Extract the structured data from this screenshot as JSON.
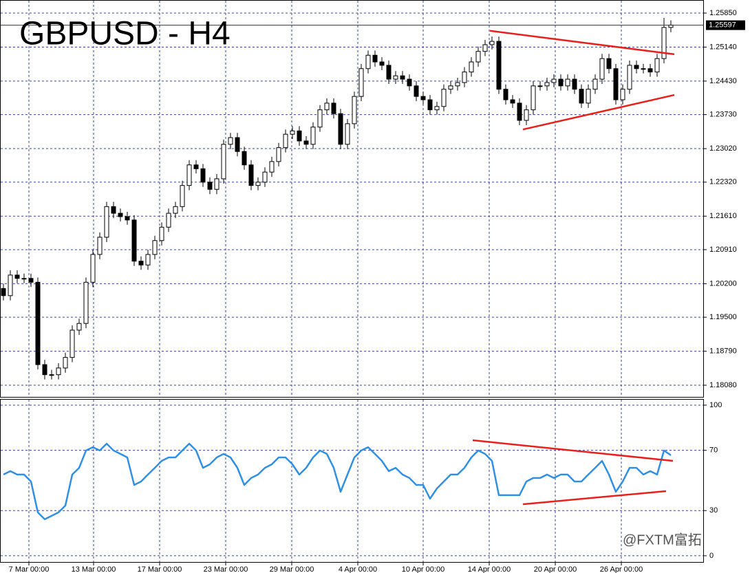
{
  "chart_data": [
    {
      "type": "candlestick",
      "title": "GBPUSD - H4",
      "color": "#000000",
      "up_color": "#ffffff",
      "down_color": "#000000",
      "trendline_color": "#e8201c",
      "grid": true,
      "xlim": [
        -0.5,
        101.8
      ],
      "ylim": [
        1.17836,
        1.26123
      ],
      "yticks": [
        {
          "value": 1.2585,
          "label": "1.25850"
        },
        {
          "value": 1.2514,
          "label": "1.25140"
        },
        {
          "value": 1.2443,
          "label": "1.24430"
        },
        {
          "value": 1.2373,
          "label": "1.23730"
        },
        {
          "value": 1.2302,
          "label": "1.23020"
        },
        {
          "value": 1.2232,
          "label": "1.22320"
        },
        {
          "value": 1.2161,
          "label": "1.21610"
        },
        {
          "value": 1.2091,
          "label": "1.20910"
        },
        {
          "value": 1.202,
          "label": "1.20200"
        },
        {
          "value": 1.195,
          "label": "1.19500"
        },
        {
          "value": 1.1879,
          "label": "1.18790"
        },
        {
          "value": 1.1808,
          "label": "1.18080"
        }
      ],
      "last_price": 1.25597,
      "open": [
        1.201,
        1.1995,
        1.2038,
        1.2031,
        1.2031,
        1.2023,
        1.1851,
        1.183,
        1.183,
        1.1844,
        1.1866,
        1.1923,
        1.1937,
        1.2023,
        1.2081,
        1.2117,
        1.2181,
        1.2167,
        1.216,
        1.2153,
        1.2067,
        1.2059,
        1.2081,
        1.211,
        1.2138,
        1.2167,
        1.2181,
        1.2225,
        1.2268,
        1.226,
        1.2232,
        1.2217,
        1.2239,
        1.2311,
        1.2325,
        1.2296,
        1.2268,
        1.2225,
        1.2232,
        1.2253,
        1.2275,
        1.2304,
        1.2332,
        1.2339,
        1.2318,
        1.2311,
        1.2347,
        1.2383,
        1.2397,
        1.2375,
        1.2311,
        1.2354,
        1.2411,
        1.2469,
        1.2497,
        1.2483,
        1.2476,
        1.2447,
        1.2454,
        1.2447,
        1.2433,
        1.2411,
        1.2404,
        1.2383,
        1.239,
        1.2426,
        1.2433,
        1.244,
        1.2462,
        1.2483,
        1.2505,
        1.2519,
        1.2526,
        1.2426,
        1.2404,
        1.2397,
        1.2361,
        1.2383,
        1.2433,
        1.2433,
        1.244,
        1.2447,
        1.2433,
        1.2447,
        1.2426,
        1.2397,
        1.2426,
        1.2447,
        1.249,
        1.2469,
        1.2404,
        1.2426,
        1.2476,
        1.2469,
        1.2469,
        1.2462,
        1.249,
        1.2555
      ],
      "high": [
        1.202,
        1.2048,
        1.2048,
        1.2041,
        1.2041,
        1.2033,
        1.1861,
        1.184,
        1.1854,
        1.1876,
        1.1933,
        1.1947,
        1.2033,
        1.2091,
        1.2127,
        1.2191,
        1.2191,
        1.2177,
        1.217,
        1.2163,
        1.2077,
        1.2091,
        1.212,
        1.2148,
        1.2177,
        1.2191,
        1.2235,
        1.2278,
        1.2278,
        1.227,
        1.2242,
        1.2249,
        1.2321,
        1.2335,
        1.2335,
        1.2306,
        1.2278,
        1.2242,
        1.2263,
        1.2285,
        1.2314,
        1.2342,
        1.2349,
        1.2349,
        1.2328,
        1.2357,
        1.2393,
        1.2407,
        1.2407,
        1.2385,
        1.2364,
        1.2421,
        1.2479,
        1.2507,
        1.2507,
        1.2493,
        1.2486,
        1.2464,
        1.2464,
        1.2457,
        1.2443,
        1.2421,
        1.2414,
        1.24,
        1.2436,
        1.2443,
        1.245,
        1.2472,
        1.2493,
        1.2515,
        1.2529,
        1.2536,
        1.2536,
        1.2436,
        1.2414,
        1.2407,
        1.2393,
        1.2443,
        1.2443,
        1.245,
        1.2457,
        1.2457,
        1.2457,
        1.2457,
        1.2436,
        1.2436,
        1.2457,
        1.25,
        1.25,
        1.2479,
        1.2436,
        1.2486,
        1.2486,
        1.2479,
        1.2479,
        1.25,
        1.2575,
        1.257
      ],
      "low": [
        1.1985,
        1.1985,
        1.2021,
        1.2021,
        1.2013,
        1.1841,
        1.182,
        1.182,
        1.182,
        1.1834,
        1.1856,
        1.1913,
        1.1927,
        1.2013,
        1.2071,
        1.2107,
        1.2157,
        1.215,
        1.2143,
        1.2057,
        1.2049,
        1.2049,
        1.2071,
        1.21,
        1.2128,
        1.2157,
        1.2171,
        1.2215,
        1.225,
        1.2222,
        1.2207,
        1.2207,
        1.2229,
        1.2301,
        1.2286,
        1.2258,
        1.2215,
        1.2215,
        1.2222,
        1.2243,
        1.2265,
        1.2294,
        1.2322,
        1.2308,
        1.2301,
        1.2301,
        1.2337,
        1.2373,
        1.2365,
        1.2301,
        1.2301,
        1.2344,
        1.2401,
        1.2459,
        1.2473,
        1.2466,
        1.2437,
        1.2437,
        1.2437,
        1.2423,
        1.2401,
        1.2394,
        1.2373,
        1.2373,
        1.238,
        1.2416,
        1.2423,
        1.243,
        1.2452,
        1.2473,
        1.2495,
        1.2509,
        1.2416,
        1.2394,
        1.2387,
        1.2351,
        1.2351,
        1.2373,
        1.2423,
        1.2423,
        1.243,
        1.2423,
        1.2423,
        1.2416,
        1.2387,
        1.2387,
        1.2416,
        1.2437,
        1.2459,
        1.2394,
        1.2394,
        1.2416,
        1.2459,
        1.2459,
        1.2452,
        1.2452,
        1.248,
        1.2545
      ],
      "close": [
        1.1995,
        1.2038,
        1.2031,
        1.2031,
        1.2023,
        1.1851,
        1.183,
        1.183,
        1.1844,
        1.1866,
        1.1923,
        1.1937,
        1.2023,
        1.2081,
        1.2117,
        1.2181,
        1.2167,
        1.216,
        1.2153,
        1.2067,
        1.2059,
        1.2081,
        1.211,
        1.2138,
        1.2167,
        1.2181,
        1.2225,
        1.2268,
        1.226,
        1.2232,
        1.2217,
        1.2239,
        1.2311,
        1.2325,
        1.2296,
        1.2268,
        1.2225,
        1.2232,
        1.2253,
        1.2275,
        1.2304,
        1.2332,
        1.2339,
        1.2318,
        1.2311,
        1.2347,
        1.2383,
        1.2397,
        1.2375,
        1.2311,
        1.2354,
        1.2411,
        1.2469,
        1.2497,
        1.2483,
        1.2476,
        1.2447,
        1.2454,
        1.2447,
        1.2433,
        1.2411,
        1.2404,
        1.2383,
        1.239,
        1.2426,
        1.2433,
        1.244,
        1.2462,
        1.2483,
        1.2505,
        1.2519,
        1.2526,
        1.2426,
        1.2404,
        1.2397,
        1.2361,
        1.2383,
        1.2433,
        1.2433,
        1.244,
        1.2447,
        1.2433,
        1.2447,
        1.2426,
        1.2397,
        1.2426,
        1.2447,
        1.249,
        1.2469,
        1.2404,
        1.2426,
        1.2476,
        1.2469,
        1.2469,
        1.2462,
        1.249,
        1.2555,
        1.256
      ],
      "trendlines": [
        {
          "x": [
            70.7,
            97.5
          ],
          "y": [
            1.2548,
            1.2499
          ]
        },
        {
          "x": [
            75.5,
            97.5
          ],
          "y": [
            1.2342,
            1.2414
          ]
        }
      ]
    },
    {
      "type": "line",
      "color": "#2f8fe3",
      "trendline_color": "#e8201c",
      "grid": true,
      "xlim": [
        -0.5,
        101.8
      ],
      "ylim": [
        -4.6,
        104.1
      ],
      "yticks": [
        100,
        70,
        30,
        0
      ],
      "xticks": [
        {
          "value": 3.7,
          "label": "7 Mar 00:00"
        },
        {
          "value": 13.1,
          "label": "13 Mar 00:00"
        },
        {
          "value": 22.7,
          "label": "17 Mar 00:00"
        },
        {
          "value": 32.3,
          "label": "23 Mar 00:00"
        },
        {
          "value": 41.9,
          "label": "29 Mar 00:00"
        },
        {
          "value": 51.5,
          "label": "4 Apr 00:00"
        },
        {
          "value": 61,
          "label": "10 Apr 00:00"
        },
        {
          "value": 70.6,
          "label": "14 Apr 00:00"
        },
        {
          "value": 80.2,
          "label": "20 Apr 00:00"
        },
        {
          "value": 89.8,
          "label": "26 Apr 00:00"
        }
      ],
      "values": [
        53.9,
        56.2,
        53.9,
        53.9,
        49.3,
        28.8,
        24.2,
        26.5,
        28.8,
        33.3,
        53.9,
        58.4,
        69.9,
        72.1,
        69.9,
        74.4,
        69.9,
        67.6,
        65.3,
        47.0,
        49.3,
        53.9,
        58.4,
        63.0,
        65.3,
        65.3,
        69.9,
        74.4,
        69.9,
        58.4,
        60.7,
        65.3,
        67.6,
        65.3,
        58.4,
        47.0,
        51.6,
        53.9,
        58.4,
        60.7,
        65.3,
        65.3,
        60.7,
        53.9,
        58.4,
        65.3,
        69.9,
        67.6,
        58.4,
        42.5,
        53.9,
        65.3,
        69.9,
        72.1,
        67.6,
        63.0,
        56.2,
        58.4,
        53.9,
        51.6,
        47.0,
        47.0,
        37.9,
        44.7,
        49.3,
        53.9,
        53.9,
        58.4,
        65.3,
        69.9,
        67.6,
        63.0,
        40.2,
        40.2,
        40.2,
        40.2,
        49.3,
        51.6,
        51.6,
        53.9,
        51.6,
        53.9,
        53.9,
        49.3,
        49.3,
        53.9,
        58.4,
        63.0,
        53.9,
        42.5,
        49.3,
        58.4,
        58.4,
        53.9,
        56.2,
        53.9,
        69.9,
        66.7
      ],
      "trendlines": [
        {
          "x": [
            68.2,
            97.3
          ],
          "y": [
            76.7,
            63.0
          ]
        },
        {
          "x": [
            75.5,
            96.3
          ],
          "y": [
            34.2,
            42.9
          ]
        }
      ],
      "annotation": "@FXTM富拓"
    }
  ]
}
